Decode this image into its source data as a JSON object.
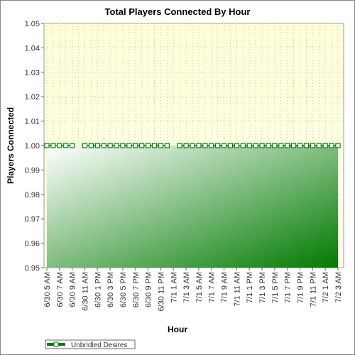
{
  "chart_data": {
    "type": "area",
    "title": "Total Players Connected By Hour",
    "xlabel": "Hour",
    "ylabel": "Players Connected",
    "categories": [
      "6/30 5 AM",
      null,
      "6/30 7 AM",
      null,
      "6/30 9 AM",
      null,
      "6/30 11 AM",
      null,
      "6/30 1 PM",
      null,
      "6/30 3 PM",
      null,
      "6/30 5 PM",
      null,
      "6/30 7 PM",
      null,
      "6/30 9 PM",
      null,
      "6/30 11 PM",
      null,
      "7/1 1 AM",
      null,
      "7/1 3 AM",
      null,
      "7/1 5 AM",
      null,
      "7/1 7 AM",
      null,
      "7/1 9 AM",
      null,
      "7/1 11 AM",
      null,
      "7/1 1 PM",
      null,
      "7/1 3 PM",
      null,
      "7/1 5 PM",
      null,
      "7/1 7 PM",
      null,
      "7/1 9 PM",
      null,
      "7/1 11 PM",
      null,
      "7/2 1 AM",
      null,
      "7/2 3 AM"
    ],
    "series": [
      {
        "name": "Unbridled Desires",
        "color": "#008000",
        "values": [
          1,
          1,
          1,
          1,
          1,
          null,
          1,
          1,
          1,
          1,
          1,
          1,
          1,
          1,
          1,
          1,
          1,
          1,
          1,
          1,
          null,
          1,
          1,
          1,
          1,
          1,
          1,
          1,
          1,
          1,
          1,
          1,
          1,
          1,
          1,
          1,
          1,
          1,
          1,
          1,
          1,
          1,
          1,
          1,
          1,
          1,
          1
        ]
      }
    ],
    "ylim": [
      0.95,
      1.05
    ],
    "yticks": [
      0.95,
      0.96,
      0.97,
      0.98,
      0.99,
      {
        "value": 1,
        "label": "1.00"
      },
      1.01,
      1.02,
      1.03,
      1.04,
      1.05
    ],
    "grid": true,
    "legend": "bottom-left"
  }
}
